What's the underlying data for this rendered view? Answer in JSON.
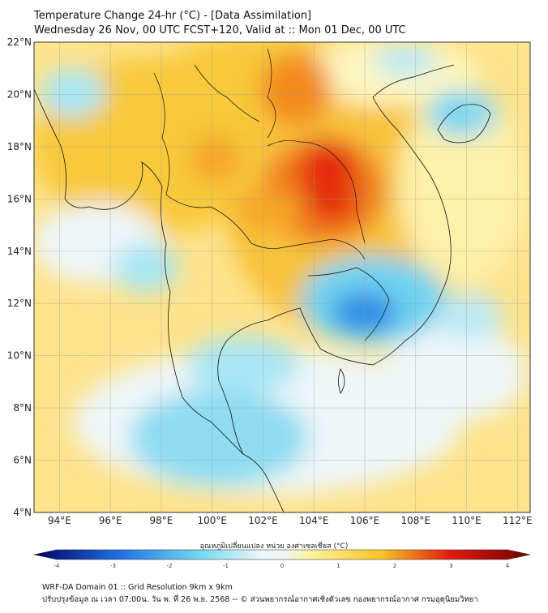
{
  "header": {
    "title_line1": "Temperature Change 24-hr (°C) - [Data Assimilation]",
    "title_line2": "Wednesday 26 Nov, 00 UTC FCST+120, Valid at :: Mon 01 Dec, 00 UTC"
  },
  "map": {
    "lat_range": [
      4,
      22
    ],
    "lon_range": [
      93,
      112.5
    ],
    "lat_ticks": [
      "4°N",
      "6°N",
      "8°N",
      "10°N",
      "12°N",
      "14°N",
      "16°N",
      "18°N",
      "20°N",
      "22°N"
    ],
    "lon_ticks": [
      "94°E",
      "96°E",
      "98°E",
      "100°E",
      "102°E",
      "104°E",
      "106°E",
      "108°E",
      "110°E",
      "112°E"
    ],
    "background_color": "#fde38c"
  },
  "colorbar": {
    "label": "อุณหภูมิเปลี่ยนแปลง หน่วย องศาเซลเซียส (°C)",
    "min": -4,
    "max": 4,
    "ticks": [
      "-4",
      "-3",
      "-2",
      "-1",
      "0",
      "1",
      "2",
      "3",
      "4"
    ],
    "colors": {
      "cold_extreme": "#000066",
      "cold": "#1f6fe0",
      "cool": "#6fd8f2",
      "neutral": "#eef6f8",
      "warm_light": "#fbf29a",
      "warm": "#f7c425",
      "hot": "#f07a1a",
      "very_hot": "#e21a10",
      "hot_extreme": "#6e0000"
    }
  },
  "footer": {
    "line1": "WRF-DA Domain 01 :: Grid Resolution 9km x 9km",
    "line2": "ปรับปรุงข้อมูล ณ เวลา 07:00น. วัน พ. ที่ 26 พ.ย. 2568 -- © ส่วนพยากรณ์อากาศเชิงตัวเลข กองพยากรณ์อากาศ กรมอุตุนิยมวิทยา"
  }
}
